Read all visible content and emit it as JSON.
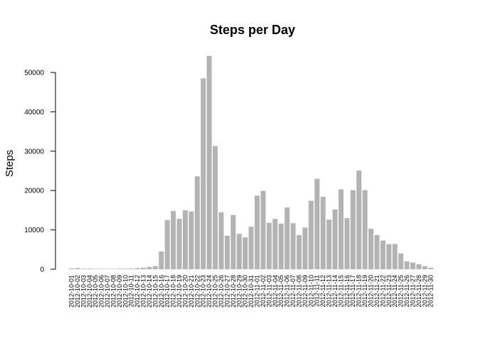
{
  "chart_data": {
    "type": "bar",
    "title": "Steps per Day",
    "xlabel": "",
    "ylabel": "Steps",
    "ylim": [
      0,
      55000
    ],
    "yticks": [
      0,
      10000,
      20000,
      30000,
      40000,
      50000
    ],
    "ytick_labels": [
      "0",
      "10000",
      "20000",
      "30000",
      "40000",
      "50000"
    ],
    "grid": false,
    "legend": "none",
    "bar_color": "#b3b3b3",
    "categories": [
      "2012-10-01",
      "2012-10-02",
      "2012-10-03",
      "2012-10-04",
      "2012-10-05",
      "2012-10-06",
      "2012-10-07",
      "2012-10-08",
      "2012-10-09",
      "2012-10-10",
      "2012-10-11",
      "2012-10-12",
      "2012-10-13",
      "2012-10-14",
      "2012-10-15",
      "2012-10-16",
      "2012-10-17",
      "2012-10-18",
      "2012-10-19",
      "2012-10-20",
      "2012-10-21",
      "2012-10-22",
      "2012-10-23",
      "2012-10-24",
      "2012-10-25",
      "2012-10-26",
      "2012-10-27",
      "2012-10-28",
      "2012-10-29",
      "2012-10-30",
      "2012-10-31",
      "2012-11-01",
      "2012-11-02",
      "2012-11-03",
      "2012-11-04",
      "2012-11-05",
      "2012-11-06",
      "2012-11-07",
      "2012-11-08",
      "2012-11-09",
      "2012-11-10",
      "2012-11-11",
      "2012-11-12",
      "2012-11-13",
      "2012-11-14",
      "2012-11-15",
      "2012-11-16",
      "2012-11-17",
      "2012-11-18",
      "2012-11-19",
      "2012-11-20",
      "2012-11-21",
      "2012-11-22",
      "2012-11-23",
      "2012-11-24",
      "2012-11-25",
      "2012-11-26",
      "2012-11-27",
      "2012-11-28",
      "2012-11-29",
      "2012-11-30"
    ],
    "values": [
      200,
      300,
      150,
      150,
      100,
      100,
      100,
      100,
      150,
      150,
      200,
      300,
      400,
      600,
      800,
      4500,
      12500,
      14800,
      12800,
      15000,
      14700,
      23600,
      48500,
      54200,
      31300,
      14500,
      8500,
      13800,
      9000,
      8100,
      10800,
      18700,
      19900,
      11800,
      12800,
      11600,
      15700,
      11700,
      8700,
      10600,
      17400,
      23000,
      18400,
      12600,
      15200,
      20300,
      13000,
      20100,
      25100,
      20100,
      10300,
      8700,
      7300,
      6400,
      6400,
      4000,
      2000,
      1700,
      1300,
      800,
      400
    ]
  }
}
